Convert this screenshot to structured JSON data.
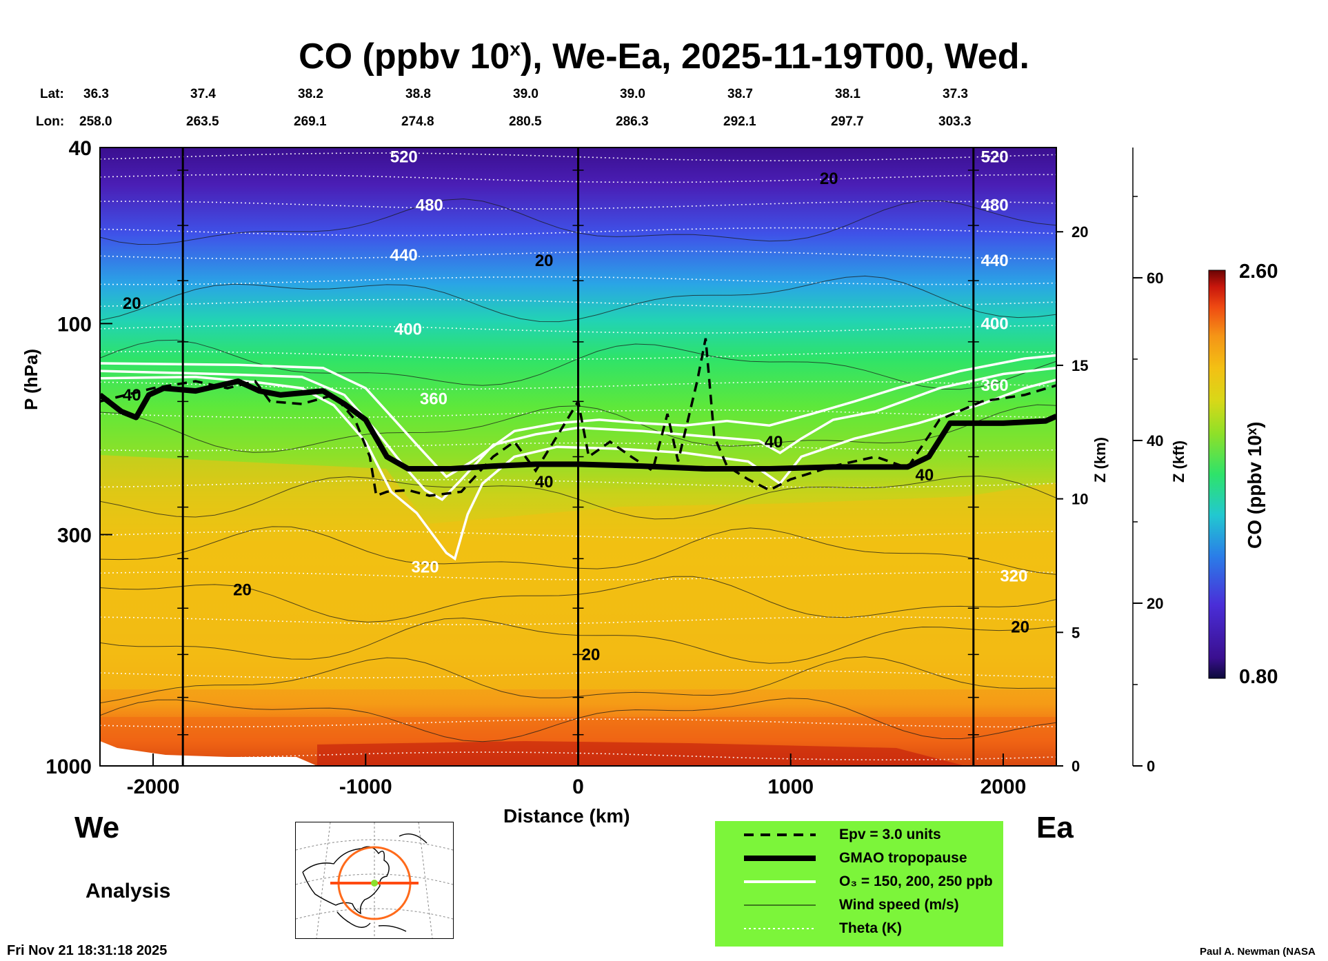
{
  "title": "CO (ppbv 10",
  "title_sup": "x",
  "title_rest": "), We-Ea, 2025-11-19T00, Wed.",
  "lat_label": "Lat:",
  "lon_label": "Lon:",
  "lat_values": [
    "36.3",
    "37.4",
    "38.2",
    "38.8",
    "39.0",
    "39.0",
    "38.7",
    "38.1",
    "37.3"
  ],
  "lon_values": [
    "258.0",
    "263.5",
    "269.1",
    "274.8",
    "280.5",
    "286.3",
    "292.1",
    "297.7",
    "303.3"
  ],
  "direction_west": "We",
  "direction_east": "Ea",
  "analysis_label": "Analysis",
  "timestamp": "Fri Nov 21 18:31:18 2025",
  "credit": "Paul A. Newman (NASA",
  "legend": {
    "epv": "Epv = 3.0 units",
    "tropopause": "GMAO tropopause",
    "ozone": "O₃ = 150, 200, 250 ppb",
    "wind": "Wind speed (m/s)",
    "theta": "Theta (K)"
  },
  "colorbar": {
    "max": "2.60",
    "min": "0.80",
    "label": "CO (ppbv 10ˣ)"
  },
  "chart_data": {
    "type": "heatmap",
    "title": "CO (ppbv 10x), We-Ea, 2025-11-19T00, Wed.",
    "xlabel": "Distance (km)",
    "ylabel": "P (hPa)",
    "y_scale": "log",
    "xlim": [
      -2250,
      2250
    ],
    "ylim": [
      1000,
      40
    ],
    "x_ticks": [
      "-2000",
      "-1000",
      "0",
      "1000",
      "2000"
    ],
    "x_tick_values": [
      -2000,
      -1000,
      0,
      1000,
      2000
    ],
    "y_ticks": [
      "40",
      "100",
      "300",
      "1000"
    ],
    "y_tick_values": [
      40,
      100,
      300,
      1000
    ],
    "z_km_ticks": [
      "0",
      "5",
      "10",
      "15",
      "20"
    ],
    "z_km_values": [
      0,
      5,
      10,
      15,
      20
    ],
    "z_km_label": "Z (km)",
    "z_kft_ticks": [
      "0",
      "20",
      "40",
      "60"
    ],
    "z_kft_values": [
      0,
      20,
      40,
      60
    ],
    "z_kft_label": "Z (kft)",
    "colorbar_range": [
      0.8,
      2.6
    ],
    "theta_labels": [
      {
        "text": "520",
        "x": -820,
        "p": 42
      },
      {
        "text": "480",
        "x": -700,
        "p": 54
      },
      {
        "text": "440",
        "x": -820,
        "p": 70
      },
      {
        "text": "400",
        "x": -800,
        "p": 103
      },
      {
        "text": "360",
        "x": -680,
        "p": 148
      },
      {
        "text": "320",
        "x": -720,
        "p": 355
      },
      {
        "text": "520",
        "x": 1960,
        "p": 42
      },
      {
        "text": "480",
        "x": 1960,
        "p": 54
      },
      {
        "text": "440",
        "x": 1960,
        "p": 72
      },
      {
        "text": "400",
        "x": 1960,
        "p": 100
      },
      {
        "text": "360",
        "x": 1960,
        "p": 138
      },
      {
        "text": "320",
        "x": 2050,
        "p": 372
      }
    ],
    "wind_labels": [
      {
        "text": "20",
        "x": -2100,
        "p": 90
      },
      {
        "text": "40",
        "x": -2100,
        "p": 145
      },
      {
        "text": "20",
        "x": -1580,
        "p": 400
      },
      {
        "text": "20",
        "x": -160,
        "p": 72
      },
      {
        "text": "40",
        "x": -160,
        "p": 228
      },
      {
        "text": "20",
        "x": 60,
        "p": 560
      },
      {
        "text": "40",
        "x": 920,
        "p": 185
      },
      {
        "text": "20",
        "x": 1180,
        "p": 47
      },
      {
        "text": "40",
        "x": 1630,
        "p": 220
      },
      {
        "text": "20",
        "x": 2080,
        "p": 485
      }
    ],
    "tropopause": [
      [
        -2250,
        145
      ],
      [
        -2150,
        158
      ],
      [
        -2080,
        163
      ],
      [
        -2020,
        145
      ],
      [
        -1950,
        140
      ],
      [
        -1800,
        142
      ],
      [
        -1600,
        135
      ],
      [
        -1500,
        142
      ],
      [
        -1400,
        145
      ],
      [
        -1200,
        142
      ],
      [
        -1100,
        152
      ],
      [
        -1000,
        165
      ],
      [
        -900,
        200
      ],
      [
        -800,
        213
      ],
      [
        -600,
        213
      ],
      [
        -400,
        210
      ],
      [
        -200,
        208
      ],
      [
        0,
        208
      ],
      [
        300,
        210
      ],
      [
        600,
        213
      ],
      [
        900,
        213
      ],
      [
        1200,
        211
      ],
      [
        1550,
        211
      ],
      [
        1650,
        200
      ],
      [
        1750,
        168
      ],
      [
        2000,
        168
      ],
      [
        2200,
        166
      ],
      [
        2250,
        162
      ]
    ],
    "ozone_150": [
      [
        -2250,
        123
      ],
      [
        -1600,
        124
      ],
      [
        -1200,
        126
      ],
      [
        -1000,
        140
      ],
      [
        -880,
        162
      ],
      [
        -750,
        190
      ],
      [
        -620,
        222
      ],
      [
        -500,
        205
      ],
      [
        -300,
        175
      ],
      [
        -100,
        168
      ],
      [
        100,
        165
      ],
      [
        300,
        168
      ],
      [
        500,
        170
      ],
      [
        700,
        166
      ],
      [
        900,
        170
      ],
      [
        1100,
        160
      ],
      [
        1300,
        150
      ],
      [
        1500,
        140
      ],
      [
        1800,
        128
      ],
      [
        2100,
        120
      ],
      [
        2250,
        118
      ]
    ],
    "ozone_200": [
      [
        -2250,
        128
      ],
      [
        -1700,
        130
      ],
      [
        -1300,
        132
      ],
      [
        -1100,
        145
      ],
      [
        -950,
        175
      ],
      [
        -820,
        210
      ],
      [
        -720,
        238
      ],
      [
        -640,
        250
      ],
      [
        -560,
        228
      ],
      [
        -400,
        188
      ],
      [
        -200,
        178
      ],
      [
        0,
        172
      ],
      [
        300,
        175
      ],
      [
        600,
        180
      ],
      [
        850,
        184
      ],
      [
        950,
        196
      ],
      [
        1050,
        182
      ],
      [
        1200,
        165
      ],
      [
        1400,
        158
      ],
      [
        1700,
        140
      ],
      [
        2000,
        130
      ],
      [
        2250,
        126
      ]
    ],
    "ozone_250": [
      [
        -2250,
        133
      ],
      [
        -1800,
        132
      ],
      [
        -1500,
        136
      ],
      [
        -1300,
        140
      ],
      [
        -1150,
        153
      ],
      [
        -1000,
        185
      ],
      [
        -880,
        240
      ],
      [
        -760,
        268
      ],
      [
        -620,
        330
      ],
      [
        -580,
        340
      ],
      [
        -520,
        270
      ],
      [
        -450,
        230
      ],
      [
        -300,
        200
      ],
      [
        -100,
        190
      ],
      [
        200,
        192
      ],
      [
        500,
        196
      ],
      [
        800,
        205
      ],
      [
        950,
        230
      ],
      [
        1050,
        200
      ],
      [
        1300,
        182
      ],
      [
        1600,
        168
      ],
      [
        1900,
        152
      ],
      [
        2100,
        140
      ],
      [
        2250,
        134
      ]
    ],
    "epv_3": [
      [
        -2250,
        150
      ],
      [
        -2000,
        140
      ],
      [
        -1800,
        135
      ],
      [
        -1650,
        140
      ],
      [
        -1520,
        135
      ],
      [
        -1450,
        150
      ],
      [
        -1300,
        152
      ],
      [
        -1150,
        145
      ],
      [
        -1050,
        165
      ],
      [
        -980,
        200
      ],
      [
        -950,
        245
      ],
      [
        -900,
        240
      ],
      [
        -800,
        238
      ],
      [
        -700,
        245
      ],
      [
        -550,
        240
      ],
      [
        -400,
        200
      ],
      [
        -300,
        185
      ],
      [
        -200,
        215
      ],
      [
        -100,
        180
      ],
      [
        0,
        150
      ],
      [
        50,
        200
      ],
      [
        150,
        185
      ],
      [
        250,
        200
      ],
      [
        350,
        215
      ],
      [
        420,
        160
      ],
      [
        470,
        205
      ],
      [
        560,
        135
      ],
      [
        600,
        108
      ],
      [
        640,
        180
      ],
      [
        700,
        210
      ],
      [
        800,
        225
      ],
      [
        900,
        238
      ],
      [
        1000,
        225
      ],
      [
        1200,
        210
      ],
      [
        1400,
        200
      ],
      [
        1550,
        212
      ],
      [
        1700,
        165
      ],
      [
        1900,
        150
      ],
      [
        2100,
        145
      ],
      [
        2250,
        138
      ]
    ]
  }
}
